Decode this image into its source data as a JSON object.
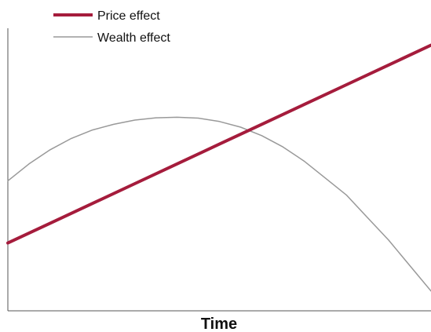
{
  "chart_data": {
    "type": "line",
    "title": "",
    "xlabel": "Time",
    "ylabel": "",
    "xlim": [
      0,
      100
    ],
    "ylim": [
      0,
      100
    ],
    "grid": false,
    "legend_position": "top-left",
    "series": [
      {
        "name": "Price effect",
        "color": "#a51c3c",
        "x": [
          0,
          10,
          20,
          30,
          40,
          50,
          60,
          70,
          80,
          90,
          100
        ],
        "y": [
          24,
          31,
          38,
          45,
          52,
          59,
          66,
          73,
          80,
          87,
          94
        ]
      },
      {
        "name": "Wealth effect",
        "color": "#999999",
        "x": [
          0,
          5,
          10,
          15,
          20,
          25,
          30,
          35,
          40,
          45,
          50,
          55,
          60,
          65,
          70,
          75,
          80,
          85,
          90,
          95,
          100
        ],
        "y": [
          46,
          52,
          57,
          61,
          64,
          66,
          67.5,
          68.3,
          68.5,
          68.2,
          67,
          65,
          62,
          58,
          53,
          47,
          41,
          33,
          25,
          16,
          7
        ]
      }
    ]
  }
}
